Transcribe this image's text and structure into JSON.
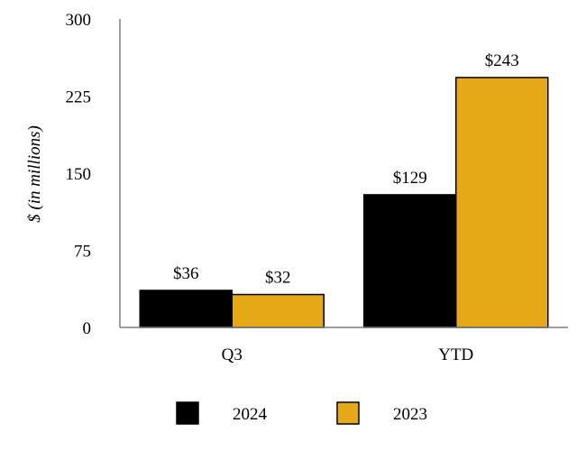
{
  "chart_data": {
    "type": "bar",
    "ylabel": "$ (in millions)",
    "ylim": [
      0,
      300
    ],
    "yticks": [
      0,
      75,
      150,
      225,
      300
    ],
    "categories": [
      "Q3",
      "YTD"
    ],
    "grid": false,
    "legend_position": "bottom",
    "series": [
      {
        "name": "2024",
        "values": [
          36,
          129
        ],
        "labels": [
          "$36",
          "$129"
        ],
        "color": "#000000"
      },
      {
        "name": "2023",
        "values": [
          32,
          243
        ],
        "labels": [
          "$32",
          "$243"
        ],
        "color": "#E5A817"
      }
    ]
  }
}
